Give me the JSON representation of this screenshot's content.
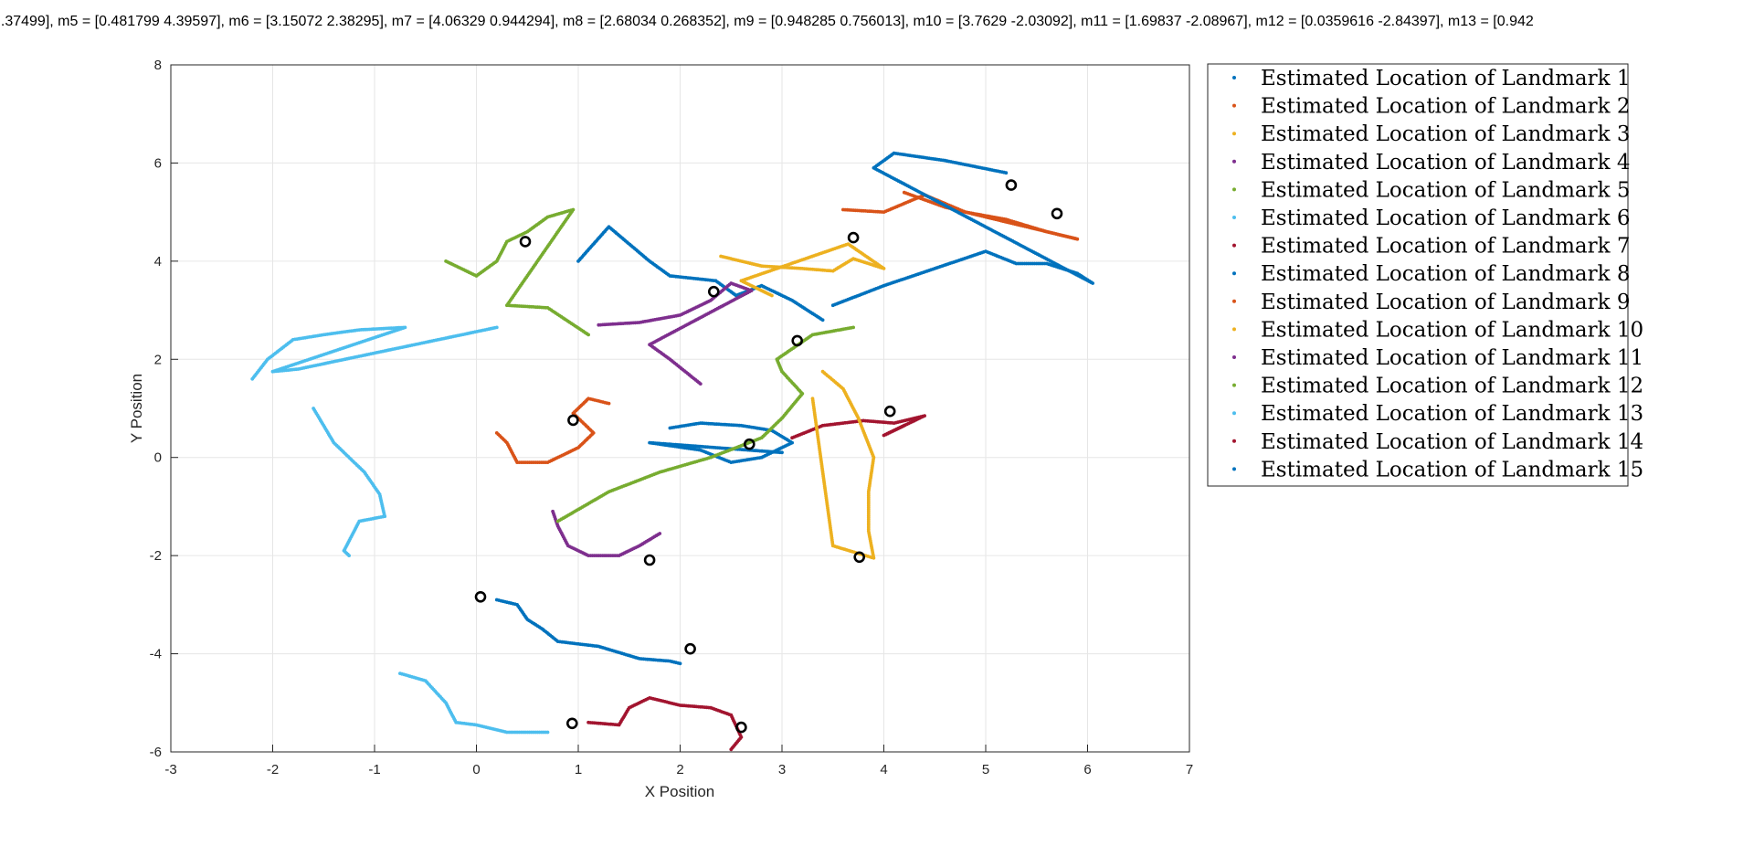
{
  "chart_data": {
    "type": "scatter",
    "title": "...37499], m5 = [0.481799 4.39597], m6 = [3.15072 2.38295], m7 = [4.06329 0.944294], m8 = [2.68034 0.268352], m9 = [0.948285 0.756013], m10 = [3.7629 -2.03092], m11 = [1.69837 -2.08967], m12 = [0.0359616 -2.84397], m13 = [0.942",
    "xlabel": "X Position",
    "ylabel": "Y Position",
    "xlim": [
      -3,
      7
    ],
    "ylim": [
      -6,
      8
    ],
    "xticks": [
      -3,
      -2,
      -1,
      0,
      1,
      2,
      3,
      4,
      5,
      6,
      7
    ],
    "yticks": [
      -6,
      -4,
      -2,
      0,
      2,
      4,
      6,
      8
    ],
    "grid": true,
    "legend_location": "outside-top-right",
    "series": [
      {
        "name": "Estimated Location of Landmark 1",
        "color": "#0072BD",
        "points": [
          [
            3.4,
            2.8
          ],
          [
            3.1,
            3.2
          ],
          [
            2.8,
            3.5
          ],
          [
            2.55,
            3.3
          ],
          [
            2.35,
            3.6
          ],
          [
            1.9,
            3.7
          ],
          [
            1.7,
            4.0
          ],
          [
            1.3,
            4.7
          ],
          [
            1.0,
            4.0
          ]
        ]
      },
      {
        "name": "Estimated Location of Landmark 2",
        "color": "#D95319",
        "points": [
          [
            3.6,
            5.05
          ],
          [
            4.0,
            5.0
          ],
          [
            4.4,
            5.35
          ],
          [
            4.8,
            5.0
          ],
          [
            5.2,
            4.85
          ],
          [
            5.6,
            4.6
          ],
          [
            5.9,
            4.45
          ],
          [
            4.6,
            5.1
          ],
          [
            4.2,
            5.4
          ]
        ]
      },
      {
        "name": "Estimated Location of Landmark 3",
        "color": "#EDB120",
        "points": [
          [
            2.4,
            4.1
          ],
          [
            2.8,
            3.9
          ],
          [
            3.2,
            3.85
          ],
          [
            3.5,
            3.8
          ],
          [
            3.7,
            4.05
          ],
          [
            4.0,
            3.85
          ],
          [
            3.65,
            4.35
          ],
          [
            2.6,
            3.6
          ],
          [
            2.9,
            3.3
          ]
        ]
      },
      {
        "name": "Estimated Location of Landmark 4",
        "color": "#7E2F8E",
        "points": [
          [
            1.2,
            2.7
          ],
          [
            1.6,
            2.75
          ],
          [
            2.0,
            2.9
          ],
          [
            2.3,
            3.2
          ],
          [
            2.5,
            3.55
          ],
          [
            2.7,
            3.4
          ],
          [
            1.7,
            2.3
          ],
          [
            1.9,
            2.0
          ],
          [
            2.2,
            1.5
          ]
        ]
      },
      {
        "name": "Estimated Location of Landmark 5",
        "color": "#77AC30",
        "points": [
          [
            -0.3,
            4.0
          ],
          [
            0.0,
            3.7
          ],
          [
            0.2,
            4.0
          ],
          [
            0.3,
            4.4
          ],
          [
            0.5,
            4.6
          ],
          [
            0.7,
            4.9
          ],
          [
            0.95,
            5.05
          ],
          [
            0.3,
            3.1
          ],
          [
            0.7,
            3.05
          ],
          [
            1.1,
            2.5
          ]
        ]
      },
      {
        "name": "Estimated Location of Landmark 6",
        "color": "#4DBEEE",
        "points": [
          [
            -2.2,
            1.6
          ],
          [
            -2.05,
            2.0
          ],
          [
            -1.8,
            2.4
          ],
          [
            -1.5,
            2.5
          ],
          [
            -1.15,
            2.6
          ],
          [
            -0.7,
            2.65
          ],
          [
            -2.0,
            1.75
          ],
          [
            -1.75,
            1.8
          ],
          [
            0.2,
            2.65
          ]
        ]
      },
      {
        "name": "Estimated Location of Landmark 7",
        "color": "#A2142F",
        "points": [
          [
            3.1,
            0.4
          ],
          [
            3.4,
            0.65
          ],
          [
            3.8,
            0.75
          ],
          [
            4.1,
            0.7
          ],
          [
            4.4,
            0.85
          ],
          [
            4.0,
            0.45
          ],
          [
            4.2,
            0.65
          ]
        ]
      },
      {
        "name": "Estimated Location of Landmark 8",
        "color": "#0072BD",
        "points": [
          [
            1.9,
            0.6
          ],
          [
            2.2,
            0.7
          ],
          [
            2.6,
            0.65
          ],
          [
            2.9,
            0.55
          ],
          [
            3.1,
            0.3
          ],
          [
            2.8,
            0.0
          ],
          [
            2.5,
            -0.1
          ],
          [
            2.2,
            0.15
          ],
          [
            1.7,
            0.3
          ],
          [
            3.0,
            0.1
          ]
        ]
      },
      {
        "name": "Estimated Location of Landmark 9",
        "color": "#D95319",
        "points": [
          [
            0.2,
            0.5
          ],
          [
            0.3,
            0.3
          ],
          [
            0.4,
            -0.1
          ],
          [
            0.7,
            -0.1
          ],
          [
            1.0,
            0.2
          ],
          [
            1.15,
            0.5
          ],
          [
            0.95,
            0.9
          ],
          [
            1.1,
            1.2
          ],
          [
            1.3,
            1.1
          ]
        ]
      },
      {
        "name": "Estimated Location of Landmark 10",
        "color": "#EDB120",
        "points": [
          [
            3.4,
            1.75
          ],
          [
            3.6,
            1.4
          ],
          [
            3.75,
            0.8
          ],
          [
            3.9,
            0.0
          ],
          [
            3.85,
            -0.7
          ],
          [
            3.85,
            -1.5
          ],
          [
            3.9,
            -2.05
          ],
          [
            3.5,
            -1.8
          ],
          [
            3.3,
            1.2
          ]
        ]
      },
      {
        "name": "Estimated Location of Landmark 11",
        "color": "#7E2F8E",
        "points": [
          [
            0.75,
            -1.1
          ],
          [
            0.8,
            -1.4
          ],
          [
            0.9,
            -1.8
          ],
          [
            1.1,
            -2.0
          ],
          [
            1.4,
            -2.0
          ],
          [
            1.6,
            -1.8
          ],
          [
            1.8,
            -1.55
          ]
        ]
      },
      {
        "name": "Estimated Location of Landmark 12",
        "color": "#77AC30",
        "points": [
          [
            0.8,
            -1.3
          ],
          [
            1.3,
            -0.7
          ],
          [
            1.8,
            -0.3
          ],
          [
            2.3,
            0.0
          ],
          [
            2.8,
            0.4
          ],
          [
            3.0,
            0.8
          ],
          [
            3.2,
            1.3
          ],
          [
            3.0,
            1.75
          ],
          [
            2.95,
            2.0
          ],
          [
            3.3,
            2.5
          ],
          [
            3.7,
            2.65
          ]
        ]
      },
      {
        "name": "Estimated Location of Landmark 13",
        "color": "#4DBEEE",
        "points": [
          [
            -1.6,
            1.0
          ],
          [
            -1.4,
            0.3
          ],
          [
            -1.1,
            -0.3
          ],
          [
            -0.95,
            -0.75
          ],
          [
            -0.9,
            -1.2
          ],
          [
            -1.15,
            -1.3
          ],
          [
            -1.3,
            -1.9
          ],
          [
            -1.25,
            -2.0
          ]
        ]
      },
      {
        "name": "Estimated Location of Landmark 14",
        "color": "#A2142F",
        "points": [
          [
            1.1,
            -5.4
          ],
          [
            1.4,
            -5.45
          ],
          [
            1.5,
            -5.1
          ],
          [
            1.7,
            -4.9
          ],
          [
            2.0,
            -5.05
          ],
          [
            2.3,
            -5.1
          ],
          [
            2.5,
            -5.25
          ],
          [
            2.6,
            -5.7
          ],
          [
            2.5,
            -5.95
          ]
        ]
      },
      {
        "name": "Estimated Location of Landmark 15",
        "color": "#0072BD",
        "points": [
          [
            3.5,
            3.1
          ],
          [
            4.0,
            3.5
          ],
          [
            4.5,
            3.85
          ],
          [
            5.0,
            4.2
          ],
          [
            5.3,
            3.95
          ],
          [
            5.6,
            3.95
          ],
          [
            5.9,
            3.75
          ],
          [
            6.05,
            3.55
          ],
          [
            3.9,
            5.9
          ],
          [
            4.1,
            6.2
          ],
          [
            4.6,
            6.05
          ],
          [
            5.2,
            5.8
          ]
        ]
      },
      {
        "name": "",
        "color": "#0072BD",
        "points": [
          [
            0.2,
            -2.9
          ],
          [
            0.4,
            -3.0
          ],
          [
            0.5,
            -3.3
          ],
          [
            0.65,
            -3.5
          ],
          [
            0.8,
            -3.75
          ],
          [
            1.2,
            -3.85
          ],
          [
            1.6,
            -4.1
          ],
          [
            1.9,
            -4.15
          ],
          [
            2.0,
            -4.2
          ]
        ]
      },
      {
        "name": "",
        "color": "#4DBEEE",
        "points": [
          [
            -0.75,
            -4.4
          ],
          [
            -0.5,
            -4.55
          ],
          [
            -0.3,
            -5.0
          ],
          [
            -0.2,
            -5.4
          ],
          [
            0.0,
            -5.45
          ],
          [
            0.3,
            -5.6
          ],
          [
            0.7,
            -5.6
          ]
        ]
      }
    ],
    "true_landmarks": [
      [
        0.48,
        4.4
      ],
      [
        2.33,
        3.38
      ],
      [
        3.15,
        2.38
      ],
      [
        3.7,
        4.48
      ],
      [
        5.25,
        5.55
      ],
      [
        5.7,
        4.97
      ],
      [
        4.06,
        0.94
      ],
      [
        2.68,
        0.27
      ],
      [
        0.95,
        0.76
      ],
      [
        3.76,
        -2.03
      ],
      [
        1.7,
        -2.09
      ],
      [
        0.04,
        -2.84
      ],
      [
        2.1,
        -3.9
      ],
      [
        0.94,
        -5.42
      ],
      [
        2.6,
        -5.5
      ]
    ]
  }
}
